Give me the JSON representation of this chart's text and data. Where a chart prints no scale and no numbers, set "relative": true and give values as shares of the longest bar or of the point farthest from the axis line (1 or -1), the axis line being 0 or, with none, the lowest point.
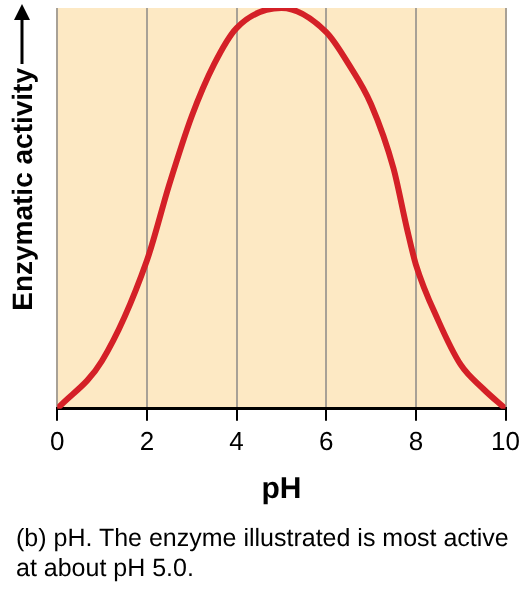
{
  "chart_data": {
    "type": "line",
    "relative": true,
    "xlabel": "pH",
    "ylabel": "Enzymatic activity",
    "xlim": [
      0,
      10
    ],
    "xticks": [
      0,
      2,
      4,
      6,
      8,
      10
    ],
    "grid": "x",
    "legend": false,
    "annotations": [
      "(b) pH. The enzyme illustrated is most active at about pH 5.0."
    ],
    "series": [
      {
        "color": "#d42027",
        "x": [
          0,
          1,
          2,
          2.5,
          3,
          3.5,
          4,
          5,
          6,
          6.5,
          7,
          7.5,
          7.8,
          8,
          8.5,
          9,
          9.5,
          10
        ],
        "values": [
          0,
          0.12,
          0.37,
          0.56,
          0.73,
          0.86,
          0.95,
          1,
          0.94,
          0.86,
          0.76,
          0.6,
          0.45,
          0.36,
          0.22,
          0.11,
          0.05,
          0
        ]
      }
    ]
  }
}
